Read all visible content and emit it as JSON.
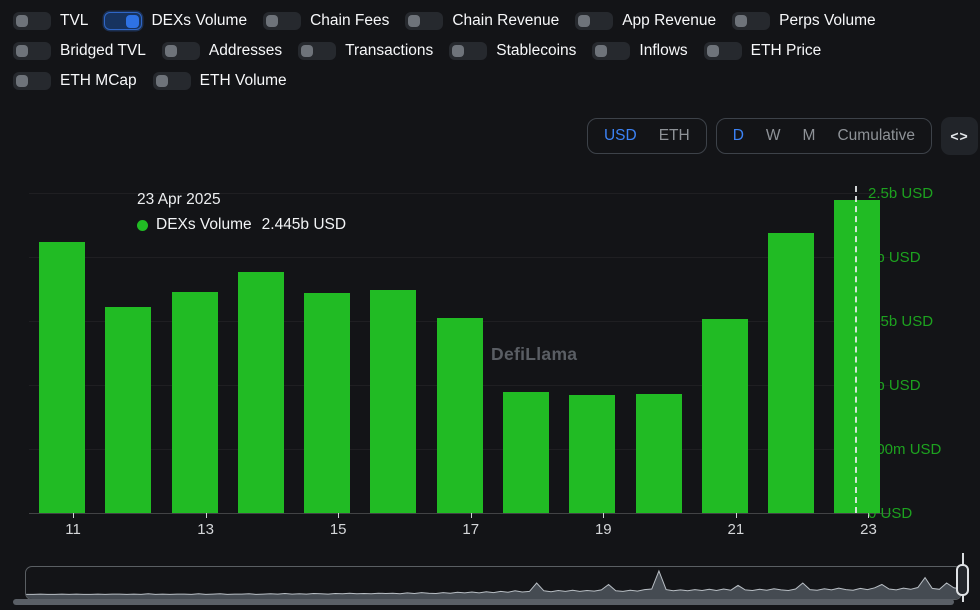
{
  "toggles": {
    "rows": [
      [
        {
          "label": "TVL",
          "on": false
        },
        {
          "label": "DEXs Volume",
          "on": true
        },
        {
          "label": "Chain Fees",
          "on": false
        },
        {
          "label": "Chain Revenue",
          "on": false
        },
        {
          "label": "App Revenue",
          "on": false
        },
        {
          "label": "Perps Volume",
          "on": false
        }
      ],
      [
        {
          "label": "Bridged TVL",
          "on": false
        },
        {
          "label": "Addresses",
          "on": false
        },
        {
          "label": "Transactions",
          "on": false
        },
        {
          "label": "Stablecoins",
          "on": false
        },
        {
          "label": "Inflows",
          "on": false
        },
        {
          "label": "ETH Price",
          "on": false
        }
      ],
      [
        {
          "label": "ETH MCap",
          "on": false
        },
        {
          "label": "ETH Volume",
          "on": false
        }
      ]
    ]
  },
  "controls": {
    "currency": {
      "options": [
        "USD",
        "ETH"
      ],
      "selected": "USD"
    },
    "interval": {
      "options": [
        "D",
        "W",
        "M",
        "Cumulative"
      ],
      "selected": "D"
    },
    "embed_label": "<>"
  },
  "tooltip": {
    "date": "23 Apr 2025",
    "series": "DEXs Volume",
    "value": "2.445b USD"
  },
  "watermark": "DefiLlama",
  "chart_data": {
    "type": "bar",
    "title": "DEXs Volume",
    "unit": "USD",
    "categories": [
      "11 Apr 2025",
      "12 Apr 2025",
      "13 Apr 2025",
      "14 Apr 2025",
      "15 Apr 2025",
      "16 Apr 2025",
      "17 Apr 2025",
      "18 Apr 2025",
      "19 Apr 2025",
      "20 Apr 2025",
      "21 Apr 2025",
      "22 Apr 2025",
      "23 Apr 2025"
    ],
    "values_billions_usd": [
      2.12,
      1.61,
      1.73,
      1.88,
      1.72,
      1.74,
      1.52,
      0.945,
      0.92,
      0.93,
      1.515,
      2.19,
      2.445
    ],
    "highlighted_category": "23 Apr 2025",
    "highlighted_value": "2.445b USD",
    "x_tick_labels": [
      "11",
      "13",
      "15",
      "17",
      "19",
      "21",
      "23"
    ],
    "y_tick_labels": [
      "0 USD",
      "500m USD",
      "1b USD",
      "1.5b USD",
      "2b USD",
      "2.5b USD"
    ],
    "ylim": [
      0,
      2.5
    ],
    "grid": "faint horizontal gridlines",
    "legend_position": "none",
    "bar_color": "#21bb24",
    "axis_label_color": "#1da21f"
  },
  "brush": {
    "spark": [
      0.12,
      0.12,
      0.13,
      0.12,
      0.12,
      0.13,
      0.12,
      0.13,
      0.12,
      0.12,
      0.13,
      0.12,
      0.13,
      0.13,
      0.12,
      0.13,
      0.12,
      0.14,
      0.12,
      0.13,
      0.12,
      0.13,
      0.13,
      0.12,
      0.14,
      0.12,
      0.13,
      0.14,
      0.12,
      0.13,
      0.13,
      0.14,
      0.12,
      0.13,
      0.14,
      0.13,
      0.15,
      0.13,
      0.14,
      0.13,
      0.15,
      0.14,
      0.13,
      0.15,
      0.14,
      0.16,
      0.14,
      0.15,
      0.14,
      0.16,
      0.15,
      0.16,
      0.14,
      0.17,
      0.15,
      0.18,
      0.16,
      0.15,
      0.18,
      0.16,
      0.19,
      0.17,
      0.2,
      0.17,
      0.21,
      0.18,
      0.22,
      0.19,
      0.24,
      0.2,
      0.22,
      0.5,
      0.24,
      0.21,
      0.25,
      0.22,
      0.26,
      0.22,
      0.25,
      0.23,
      0.27,
      0.45,
      0.24,
      0.22,
      0.26,
      0.23,
      0.28,
      0.3,
      0.9,
      0.28,
      0.24,
      0.27,
      0.24,
      0.28,
      0.25,
      0.29,
      0.25,
      0.3,
      0.26,
      0.42,
      0.27,
      0.25,
      0.29,
      0.26,
      0.31,
      0.27,
      0.25,
      0.3,
      0.5,
      0.28,
      0.26,
      0.31,
      0.27,
      0.33,
      0.28,
      0.26,
      0.32,
      0.28,
      0.34,
      0.45,
      0.3,
      0.27,
      0.33,
      0.29,
      0.35,
      0.68,
      0.32,
      0.29,
      0.5,
      0.34,
      0.3
    ]
  },
  "colors": {
    "background": "#131417",
    "bar": "#21bb24",
    "accent_blue": "#3c83f6",
    "toggle_on_track": "#17335f",
    "toggle_on_knob": "#2e72e5",
    "axis_green": "#1da21f"
  }
}
